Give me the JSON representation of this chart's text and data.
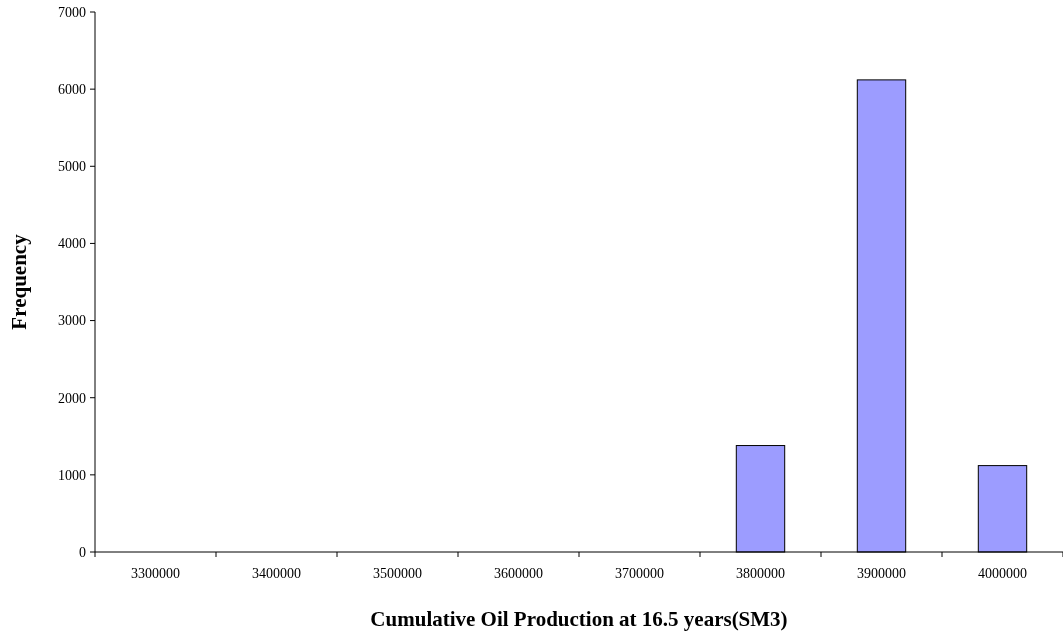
{
  "chart_data": {
    "type": "bar",
    "xlabel": "Cumulative Oil Production at 16.5 years(SM3)",
    "ylabel": "Frequency",
    "categories": [
      "3300000",
      "3400000",
      "3500000",
      "3600000",
      "3700000",
      "3800000",
      "3900000",
      "4000000"
    ],
    "values": [
      0,
      0,
      0,
      0,
      0,
      1380,
      6120,
      1120
    ],
    "color": "#9c9cff",
    "ylim": [
      0,
      7000
    ],
    "yticks": [
      0,
      1000,
      2000,
      3000,
      4000,
      5000,
      6000,
      7000
    ],
    "grid": false,
    "legend": false
  }
}
